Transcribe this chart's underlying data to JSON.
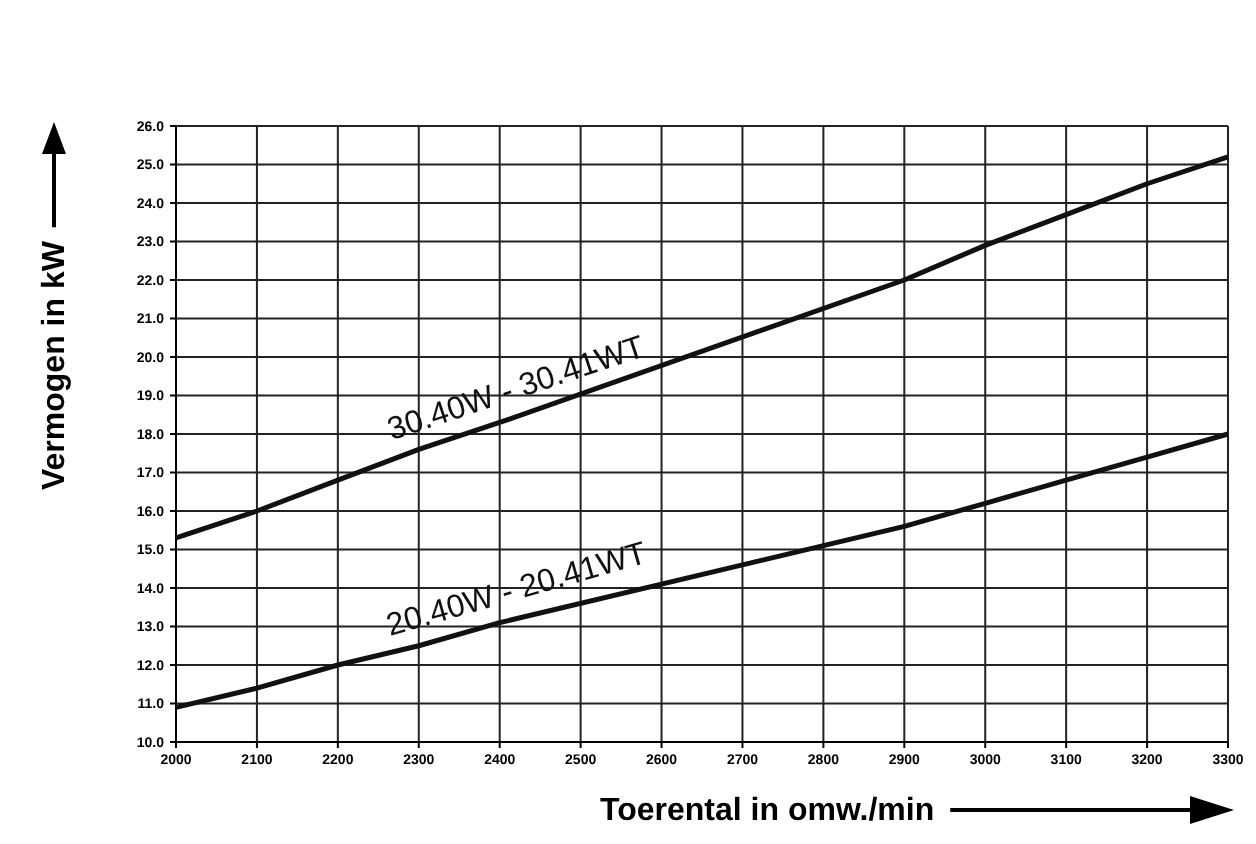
{
  "chart_data": {
    "type": "line",
    "xlabel": "Toerental in omw./min",
    "ylabel": "Vermogen in kW",
    "x": [
      2000,
      2100,
      2200,
      2300,
      2400,
      2900,
      3000,
      3100,
      3200,
      3300
    ],
    "series": [
      {
        "name": "30.40W - 30.41WT",
        "color": "#111111",
        "values": [
          15.3,
          16.0,
          16.8,
          17.6,
          18.3,
          22.0,
          22.9,
          23.7,
          24.5,
          25.2
        ]
      },
      {
        "name": "20.40W - 20.41WT",
        "color": "#111111",
        "values": [
          10.9,
          11.4,
          12.0,
          12.5,
          13.1,
          15.6,
          16.2,
          16.8,
          17.4,
          18.0
        ]
      }
    ],
    "xlim": [
      2000,
      3300
    ],
    "xticks": [
      2000,
      2100,
      2200,
      2300,
      2400,
      2500,
      2600,
      2700,
      2800,
      2900,
      3000,
      3100,
      3200,
      3300
    ],
    "ylim": [
      10.0,
      26.0
    ],
    "yticks": [
      {
        "value": 10,
        "label": "10.0"
      },
      {
        "value": 11,
        "label": "11.0"
      },
      {
        "value": 12,
        "label": "12.0"
      },
      {
        "value": 13,
        "label": "13.0"
      },
      {
        "value": 14,
        "label": "14.0"
      },
      {
        "value": 15,
        "label": "15.0"
      },
      {
        "value": 16,
        "label": "16.0"
      },
      {
        "value": 17,
        "label": "17.0"
      },
      {
        "value": 18,
        "label": "18.0"
      },
      {
        "value": 19,
        "label": "19.0"
      },
      {
        "value": 20,
        "label": "20.0"
      },
      {
        "value": 21,
        "label": "21.0"
      },
      {
        "value": 22,
        "label": "22.0"
      },
      {
        "value": 23,
        "label": "23.0"
      },
      {
        "value": 24,
        "label": "24.0"
      },
      {
        "value": 25,
        "label": "25.0"
      },
      {
        "value": 26,
        "label": "26.0"
      }
    ],
    "grid": true,
    "legend": false,
    "marker": "none",
    "line_style": "solid"
  }
}
